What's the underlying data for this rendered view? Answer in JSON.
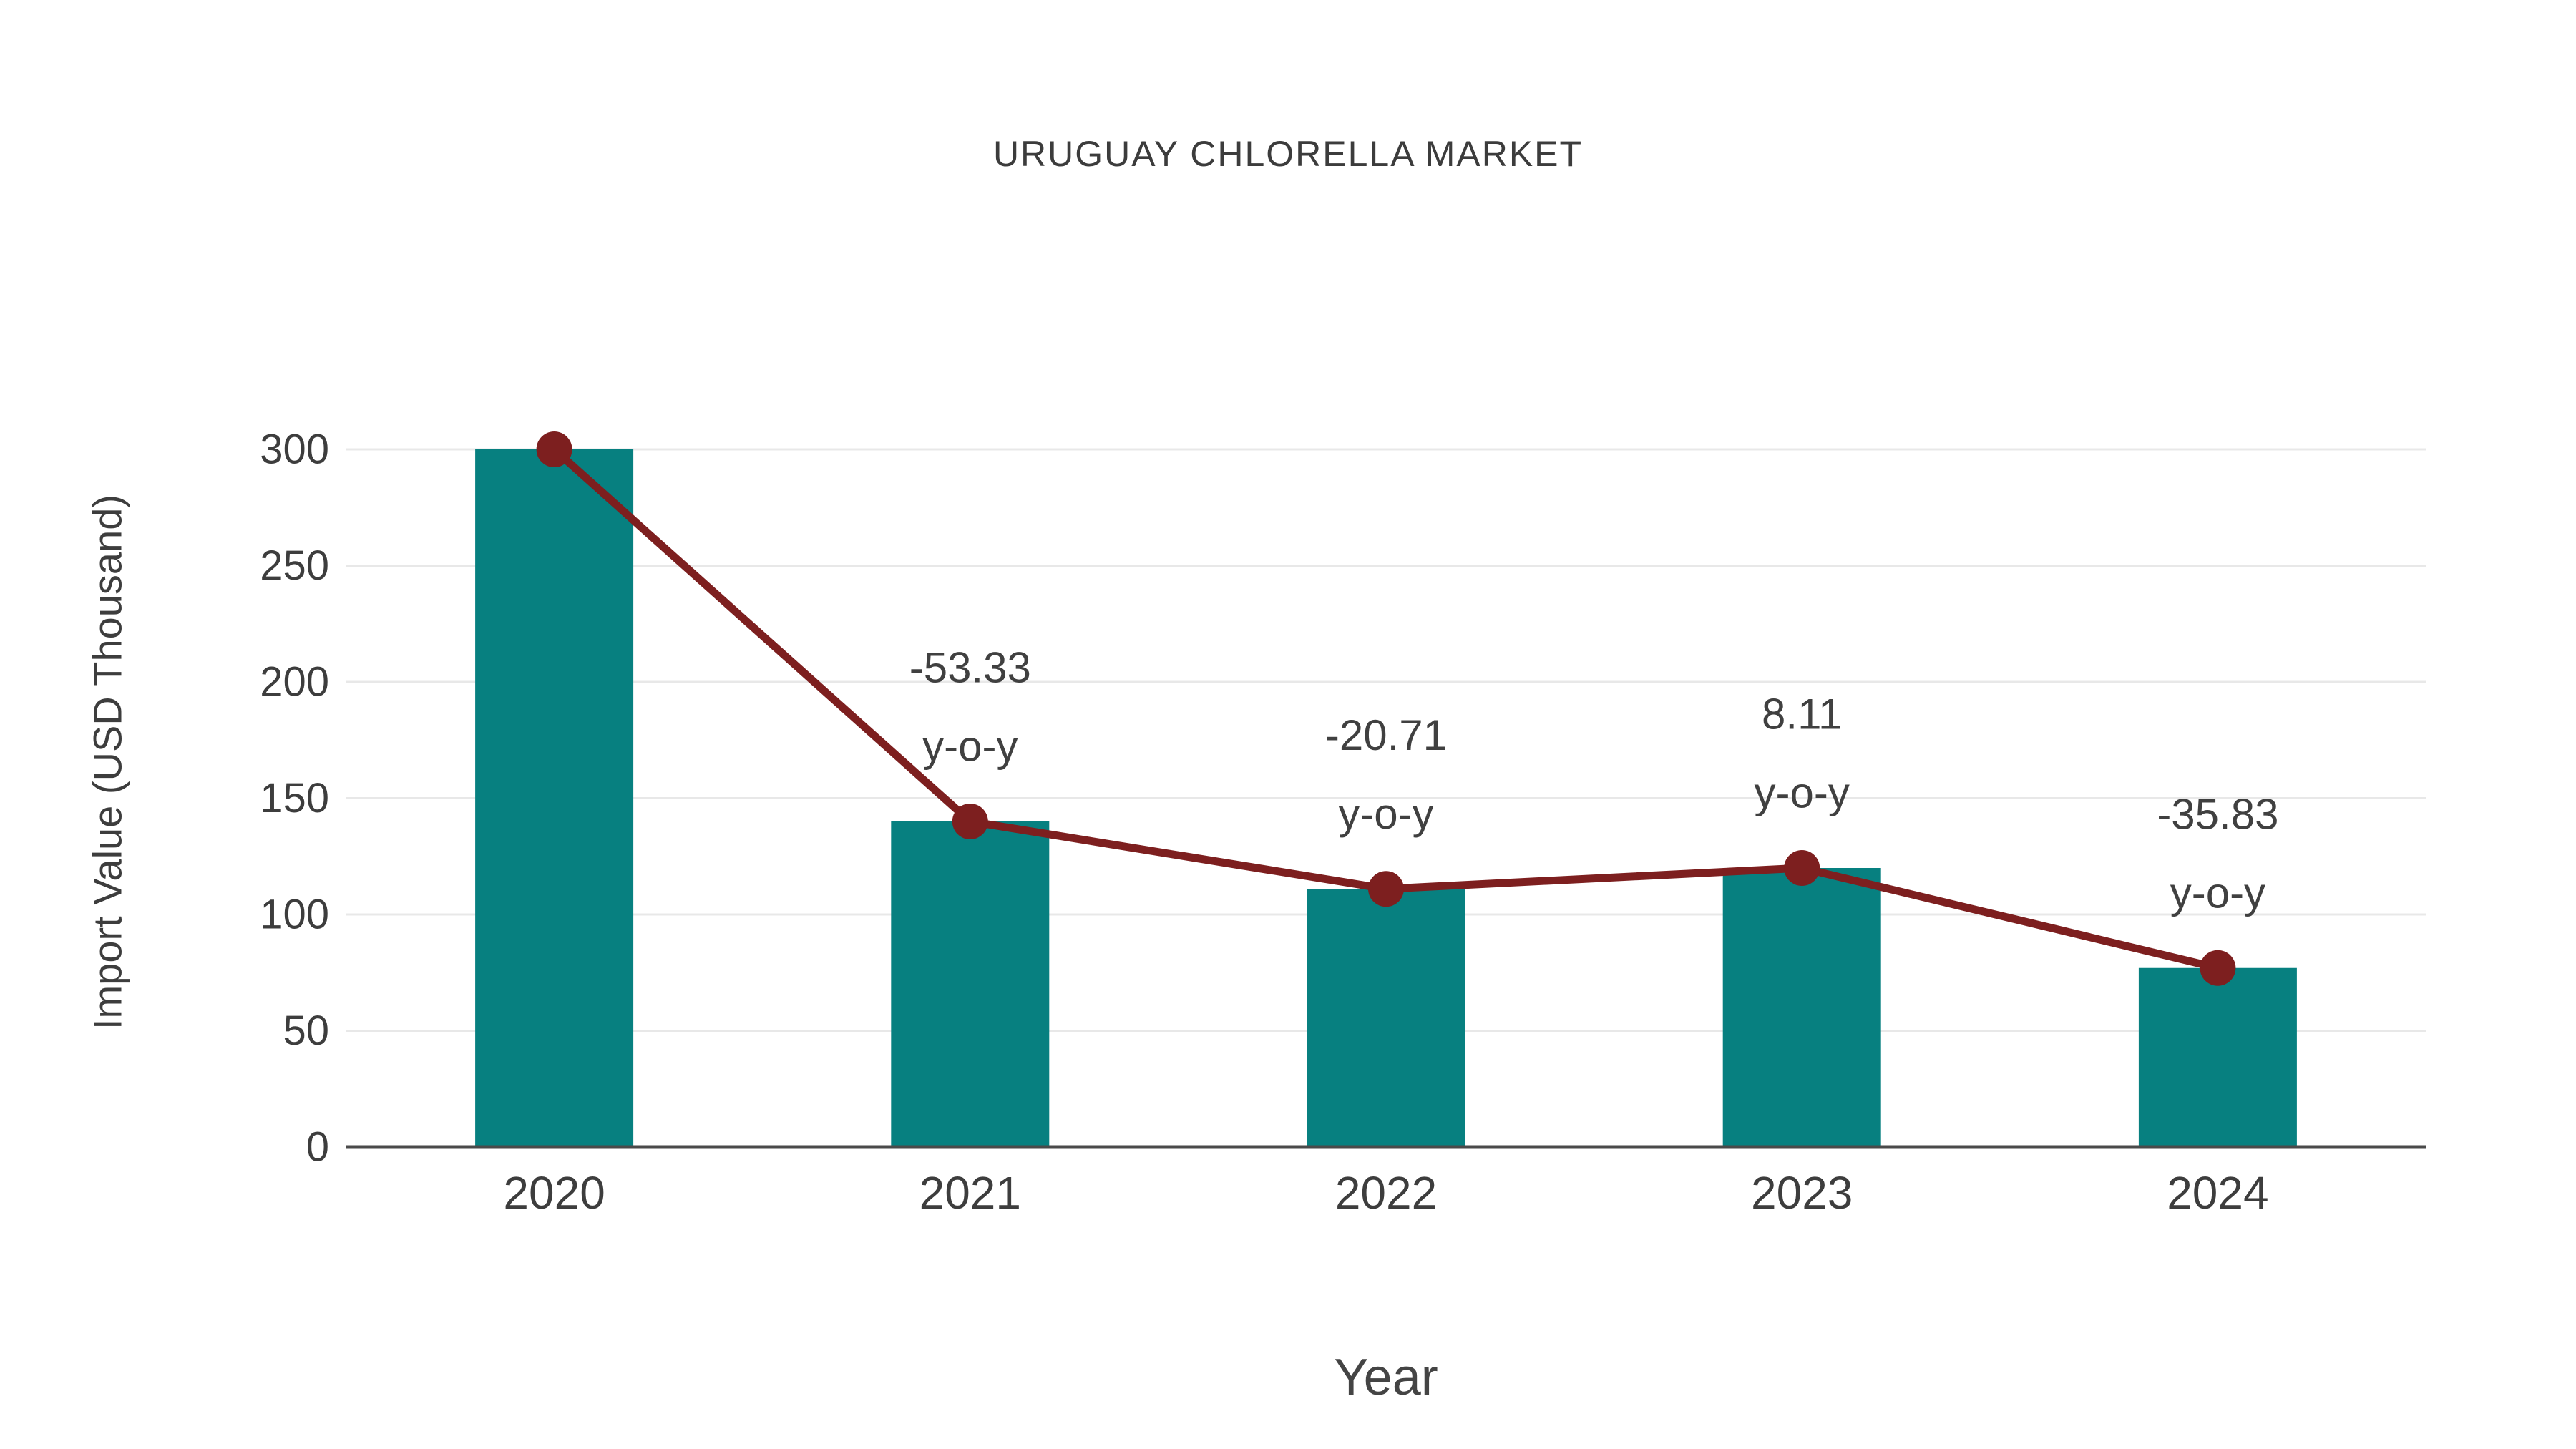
{
  "chart_data": {
    "type": "bar",
    "title": "URUGUAY CHLORELLA MARKET",
    "xlabel": "Year",
    "ylabel": "Import Value (USD Thousand)",
    "categories": [
      "2020",
      "2021",
      "2022",
      "2023",
      "2024"
    ],
    "series": [
      {
        "name": "Import Value bars",
        "type": "bar",
        "color": "#078080",
        "values": [
          300,
          140,
          111,
          120,
          77
        ]
      },
      {
        "name": "Import Value trend line",
        "type": "line",
        "color": "#7d1f1f",
        "values": [
          300,
          140,
          111,
          120,
          77
        ]
      }
    ],
    "annotations": [
      {
        "category": "2021",
        "line1": "-53.33",
        "line2": "y-o-y"
      },
      {
        "category": "2022",
        "line1": "-20.71",
        "line2": "y-o-y"
      },
      {
        "category": "2023",
        "line1": "8.11",
        "line2": "y-o-y"
      },
      {
        "category": "2024",
        "line1": "-35.83",
        "line2": "y-o-y"
      }
    ],
    "yticks": [
      0,
      50,
      100,
      150,
      200,
      250,
      300
    ],
    "ylim": [
      0,
      300
    ],
    "grid": true,
    "legend": "none",
    "colors": {
      "bar": "#078080",
      "line": "#7d1f1f",
      "grid": "#e8e8e8",
      "axis": "#4a4a4a",
      "tick_text": "#3d3d3d",
      "annotation_text": "#404040"
    }
  }
}
